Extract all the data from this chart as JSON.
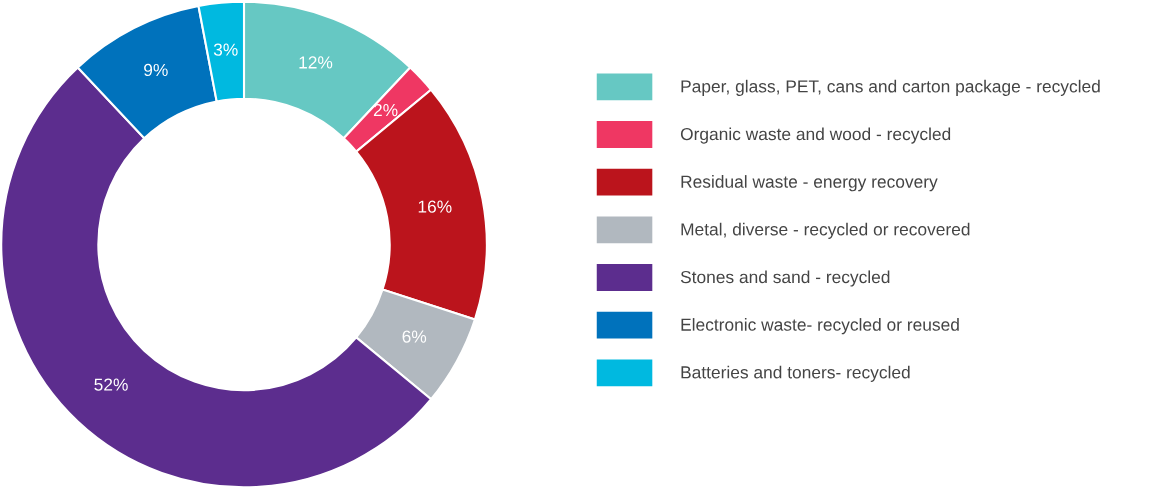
{
  "chart_data": {
    "type": "donut",
    "categories": [
      "Paper, glass, PET, cans and carton package - recycled",
      "Organic waste and wood - recycled",
      "Residual waste - energy recovery",
      "Metal, diverse - recycled or recovered",
      "Stones and sand - recycled",
      "Electronic waste- recycled or reused",
      "Batteries and toners- recycled"
    ],
    "values": [
      12,
      2,
      16,
      6,
      52,
      9,
      3
    ],
    "colors": [
      "#66c8c3",
      "#ef3763",
      "#bb141c",
      "#b1b8bf",
      "#5c2d8e",
      "#0072bc",
      "#00b9e0"
    ],
    "value_labels": [
      "12%",
      "2%",
      "16%",
      "6%",
      "52%",
      "9%",
      "3%"
    ],
    "legend": "right"
  }
}
